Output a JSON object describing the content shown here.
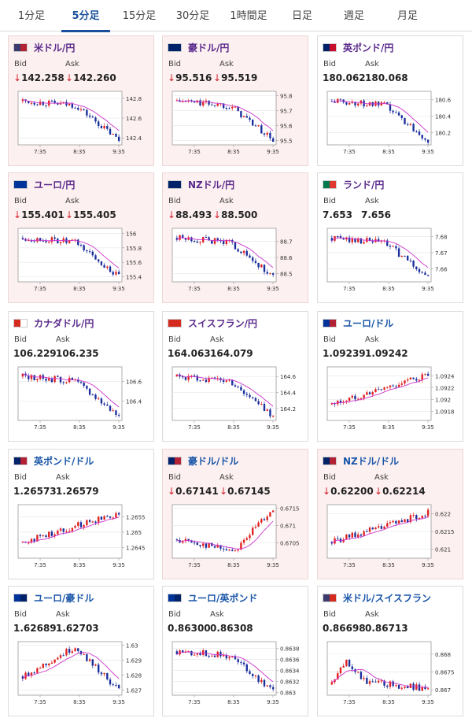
{
  "tabs": [
    {
      "label": "1分足",
      "active": false
    },
    {
      "label": "5分足",
      "active": true
    },
    {
      "label": "15分足",
      "active": false
    },
    {
      "label": "30分足",
      "active": false
    },
    {
      "label": "1時間足",
      "active": false
    },
    {
      "label": "日足",
      "active": false
    },
    {
      "label": "週足",
      "active": false
    },
    {
      "label": "月足",
      "active": false
    }
  ],
  "labels": {
    "bid": "Bid",
    "ask": "Ask"
  },
  "colors": {
    "up_candle": "#e02020",
    "down_candle": "#1a2e9c",
    "ma_line": "#cc33cc",
    "neg_arrow": "#d0202a",
    "jpy_title": "#5a2a8c",
    "usd_title": "#1a56a8",
    "down_bg": "#fdf0f0"
  },
  "x_ticks": [
    "7:35",
    "8:35",
    "9:35"
  ],
  "cards": [
    {
      "name": "米ドル/円",
      "quote": "jpy",
      "flag": [
        "#3c3b6e",
        "#b22234"
      ],
      "bid": "142.258",
      "ask": "142.260",
      "down": true,
      "y_ticks": [
        "142.8",
        "142.6",
        "142.4"
      ],
      "ylim": [
        142.33,
        142.87
      ],
      "trend": "down",
      "ma_end": 0.78
    },
    {
      "name": "豪ドル/円",
      "quote": "jpy",
      "flag": [
        "#012169",
        "#012169"
      ],
      "bid": "95.516",
      "ask": "95.519",
      "down": true,
      "y_ticks": [
        "95.8",
        "95.7",
        "95.6",
        "95.5"
      ],
      "ylim": [
        95.47,
        95.83
      ],
      "trend": "down",
      "ma_end": 0.7
    },
    {
      "name": "英ポンド/円",
      "quote": "jpy",
      "flag": [
        "#012169",
        "#c8102e"
      ],
      "bid": "180.062",
      "ask": "180.068",
      "down": false,
      "y_ticks": [
        "180.6",
        "180.4",
        "180.2"
      ],
      "ylim": [
        180.05,
        180.7
      ],
      "trend": "down",
      "ma_end": 0.7
    },
    {
      "name": "ユーロ/円",
      "quote": "jpy",
      "flag": [
        "#003399",
        "#003399"
      ],
      "bid": "155.401",
      "ask": "155.405",
      "down": true,
      "y_ticks": [
        "156",
        "155.8",
        "155.6",
        "155.4"
      ],
      "ylim": [
        155.33,
        156.07
      ],
      "trend": "down",
      "ma_end": 0.7
    },
    {
      "name": "NZドル/円",
      "quote": "jpy",
      "flag": [
        "#012169",
        "#012169"
      ],
      "bid": "88.493",
      "ask": "88.500",
      "down": true,
      "y_ticks": [
        "88.7",
        "88.6",
        "88.5"
      ],
      "ylim": [
        88.45,
        88.78
      ],
      "trend": "down",
      "ma_end": 0.72
    },
    {
      "name": "ランド/円",
      "quote": "jpy",
      "flag": [
        "#007a4d",
        "#de3831"
      ],
      "bid": "7.653",
      "ask": "7.656",
      "down": false,
      "y_ticks": [
        "7.68",
        "7.67",
        "7.66"
      ],
      "ylim": [
        7.652,
        7.685
      ],
      "trend": "down",
      "ma_end": 0.7
    },
    {
      "name": "カナダドル/円",
      "quote": "jpy",
      "flag": [
        "#d52b1e",
        "#ffffff"
      ],
      "bid": "106.229",
      "ask": "106.235",
      "down": false,
      "y_ticks": [
        "106.6",
        "106.4"
      ],
      "ylim": [
        106.2,
        106.75
      ],
      "trend": "down",
      "ma_end": 0.7
    },
    {
      "name": "スイスフラン/円",
      "quote": "jpy",
      "flag": [
        "#d52b1e",
        "#d52b1e"
      ],
      "bid": "164.063",
      "ask": "164.079",
      "down": false,
      "y_ticks": [
        "164.6",
        "164.4",
        "164.2"
      ],
      "ylim": [
        164.05,
        164.72
      ],
      "trend": "down",
      "ma_end": 0.65
    },
    {
      "name": "ユーロ/ドル",
      "quote": "usd",
      "flag": [
        "#003399",
        "#b22234"
      ],
      "bid": "1.09239",
      "ask": "1.09242",
      "down": false,
      "y_ticks": [
        "1.0924",
        "1.0922",
        "1.092",
        "1.0918"
      ],
      "ylim": [
        1.09165,
        1.09255
      ],
      "trend": "up",
      "ma_end": 0.35
    },
    {
      "name": "英ポンド/ドル",
      "quote": "usd",
      "flag": [
        "#012169",
        "#b22234"
      ],
      "bid": "1.26573",
      "ask": "1.26579",
      "down": false,
      "y_ticks": [
        "1.2655",
        "1.265",
        "1.2645"
      ],
      "ylim": [
        1.26415,
        1.2659
      ],
      "trend": "up",
      "ma_end": 0.4
    },
    {
      "name": "豪ドル/ドル",
      "quote": "usd",
      "flag": [
        "#012169",
        "#b22234"
      ],
      "bid": "0.67141",
      "ask": "0.67145",
      "down": true,
      "y_ticks": [
        "0.6715",
        "0.671",
        "0.6705"
      ],
      "ylim": [
        0.67005,
        0.6716
      ],
      "trend": "updip",
      "ma_end": 0.55
    },
    {
      "name": "NZドル/ドル",
      "quote": "usd",
      "flag": [
        "#012169",
        "#b22234"
      ],
      "bid": "0.62200",
      "ask": "0.62214",
      "down": true,
      "y_ticks": [
        "0.622",
        "0.6215",
        "0.621"
      ],
      "ylim": [
        0.62075,
        0.62225
      ],
      "trend": "up",
      "ma_end": 0.45
    },
    {
      "name": "ユーロ/豪ドル",
      "quote": "usd",
      "flag": [
        "#003399",
        "#012169"
      ],
      "bid": "1.62689",
      "ask": "1.62703",
      "down": false,
      "y_ticks": [
        "1.63",
        "1.629",
        "1.628",
        "1.627"
      ],
      "ylim": [
        1.62665,
        1.63025
      ],
      "trend": "hump",
      "ma_end": 0.5
    },
    {
      "name": "ユーロ/英ポンド",
      "quote": "usd",
      "flag": [
        "#003399",
        "#012169"
      ],
      "bid": "0.86300",
      "ask": "0.86308",
      "down": false,
      "y_ticks": [
        "0.8638",
        "0.8636",
        "0.8634",
        "0.8632",
        "0.863"
      ],
      "ylim": [
        0.86295,
        0.86392
      ],
      "trend": "down",
      "ma_end": 0.3
    },
    {
      "name": "米ドル/スイスフラン",
      "quote": "usd",
      "flag": [
        "#3c3b6e",
        "#d52b1e"
      ],
      "bid": "0.86698",
      "ask": "0.86713",
      "down": false,
      "y_ticks": [
        "0.868",
        "0.8675",
        "0.867"
      ],
      "ylim": [
        0.86685,
        0.86835
      ],
      "trend": "spike",
      "ma_end": 0.25
    }
  ]
}
